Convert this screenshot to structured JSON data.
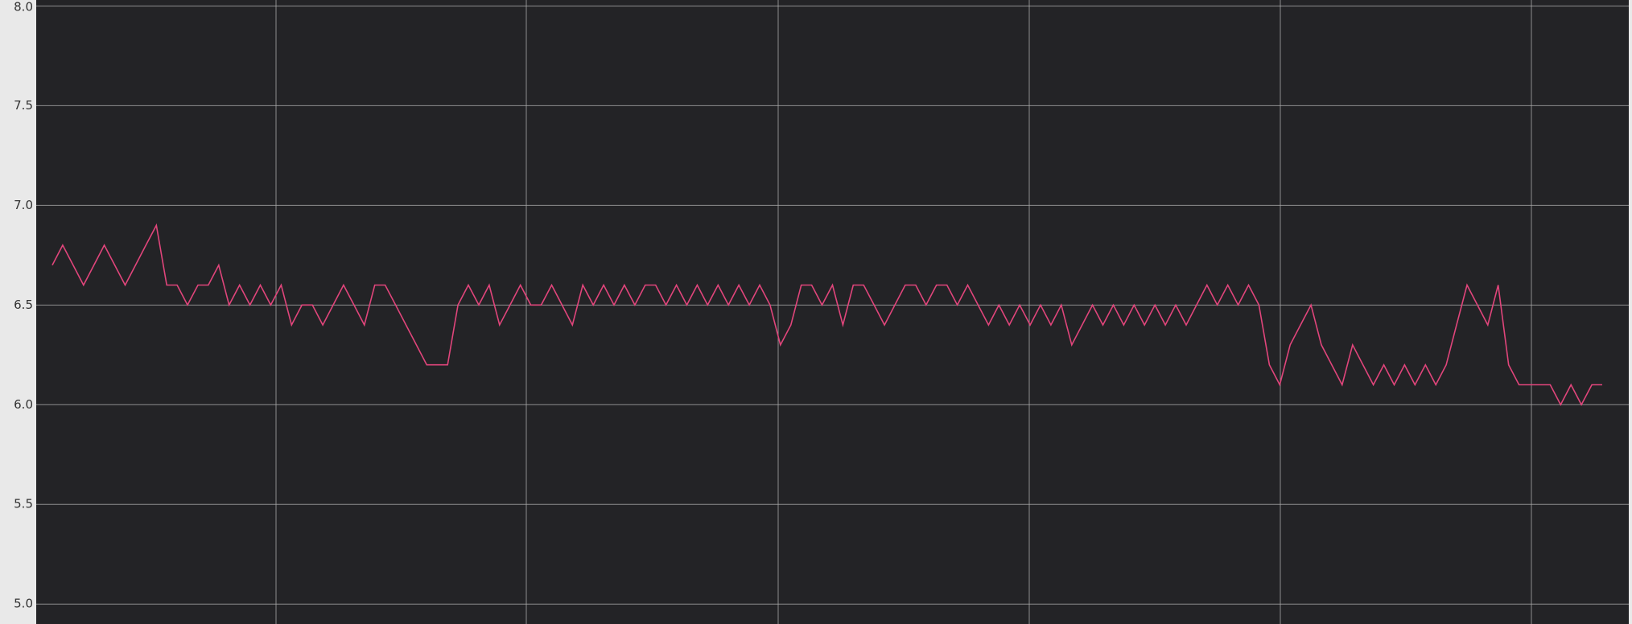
{
  "chart_data": {
    "type": "line",
    "ylim": [
      4.9,
      8.03
    ],
    "yticks": [
      {
        "value": 5,
        "label": "5.0"
      },
      5.5,
      {
        "value": 6,
        "label": "6.0"
      },
      6.5,
      {
        "value": 7,
        "label": "7.0"
      },
      7.5,
      {
        "value": 8,
        "label": "8.0"
      }
    ],
    "grid": true,
    "background": "#232326",
    "grid_color": "#a8a8a8",
    "series": [
      {
        "color": "#e0457b",
        "values": [
          6.7,
          6.8,
          6.7,
          6.6,
          6.7,
          6.8,
          6.7,
          6.6,
          6.7,
          6.8,
          6.9,
          6.6,
          6.6,
          6.5,
          6.6,
          6.6,
          6.7,
          6.5,
          6.6,
          6.5,
          6.6,
          6.5,
          6.6,
          6.4,
          6.5,
          6.5,
          6.4,
          6.5,
          6.6,
          6.5,
          6.4,
          6.6,
          6.6,
          6.5,
          6.4,
          6.3,
          6.2,
          6.2,
          6.2,
          6.5,
          6.6,
          6.5,
          6.6,
          6.4,
          6.5,
          6.6,
          6.5,
          6.5,
          6.6,
          6.5,
          6.4,
          6.6,
          6.5,
          6.6,
          6.5,
          6.6,
          6.5,
          6.6,
          6.6,
          6.5,
          6.6,
          6.5,
          6.6,
          6.5,
          6.6,
          6.5,
          6.6,
          6.5,
          6.6,
          6.5,
          6.3,
          6.4,
          6.6,
          6.6,
          6.5,
          6.6,
          6.4,
          6.6,
          6.6,
          6.5,
          6.4,
          6.5,
          6.6,
          6.6,
          6.5,
          6.6,
          6.6,
          6.5,
          6.6,
          6.5,
          6.4,
          6.5,
          6.4,
          6.5,
          6.4,
          6.5,
          6.4,
          6.5,
          6.3,
          6.4,
          6.5,
          6.4,
          6.5,
          6.4,
          6.5,
          6.4,
          6.5,
          6.4,
          6.5,
          6.4,
          6.5,
          6.6,
          6.5,
          6.6,
          6.5,
          6.6,
          6.5,
          6.2,
          6.1,
          6.3,
          6.4,
          6.5,
          6.3,
          6.2,
          6.1,
          6.3,
          6.2,
          6.1,
          6.2,
          6.1,
          6.2,
          6.1,
          6.2,
          6.1,
          6.2,
          6.4,
          6.6,
          6.5,
          6.4,
          6.6,
          6.2,
          6.1,
          6.1,
          6.1,
          6.1,
          6.0,
          6.1,
          6.0,
          6.1,
          6.1
        ]
      }
    ]
  }
}
